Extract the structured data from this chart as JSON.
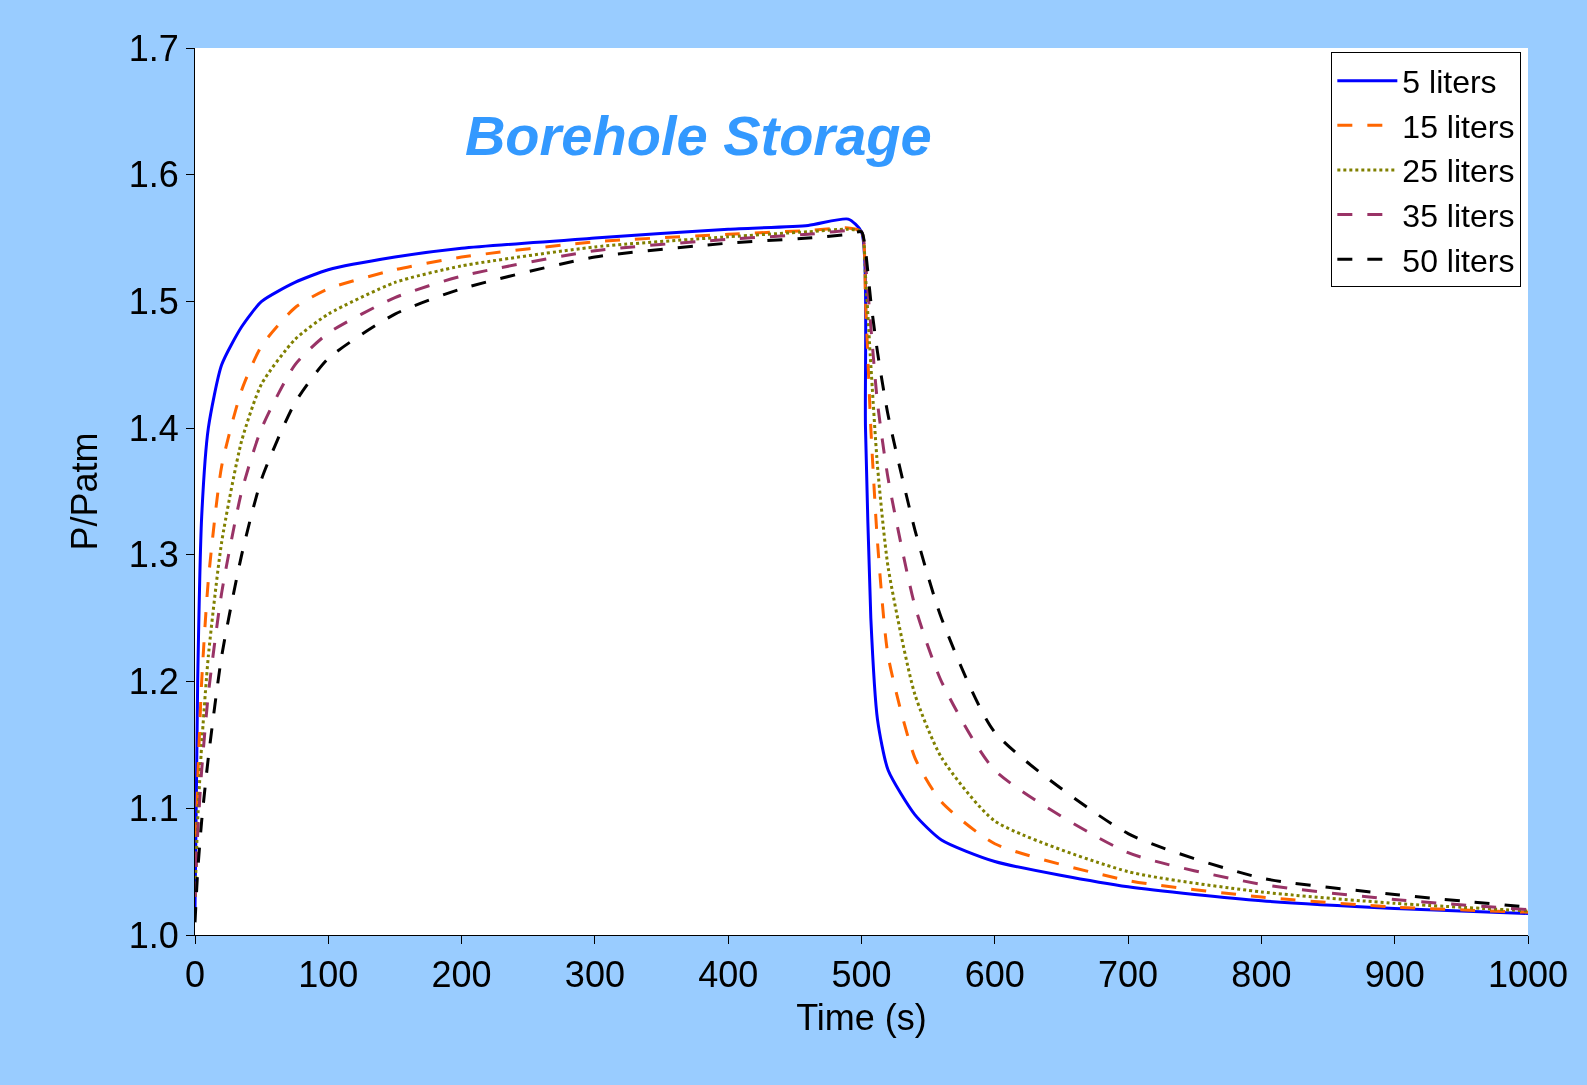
{
  "chart_data": {
    "type": "line",
    "title": "Borehole Storage",
    "xlabel": "Time (s)",
    "ylabel": "P/Patm",
    "xlim": [
      0,
      1000
    ],
    "xticks": [
      0,
      100,
      200,
      300,
      400,
      500,
      600,
      700,
      800,
      900,
      1000
    ],
    "ylim": [
      1,
      1.7
    ],
    "yticks": [
      {
        "value": 1,
        "label": "1.0"
      },
      1.1,
      1.2,
      1.3,
      1.4,
      1.5,
      1.6,
      1.7
    ],
    "grid": false,
    "legend": "top right",
    "marker": "none",
    "x": [
      0,
      2,
      5,
      10,
      20,
      35,
      50,
      75,
      100,
      150,
      200,
      300,
      400,
      460,
      490,
      500,
      503,
      507,
      512,
      520,
      540,
      560,
      600,
      700,
      800,
      900,
      1000
    ],
    "series": [
      {
        "name": "5 liters",
        "color": "#0000ff",
        "line_style": "solid",
        "values": [
          1.02,
          1.2,
          1.33,
          1.4,
          1.45,
          1.48,
          1.5,
          1.515,
          1.525,
          1.535,
          1.542,
          1.55,
          1.557,
          1.56,
          1.565,
          1.555,
          1.4,
          1.25,
          1.17,
          1.13,
          1.095,
          1.075,
          1.058,
          1.038,
          1.027,
          1.021,
          1.017
        ]
      },
      {
        "name": "15 liters",
        "color": "#ff6600",
        "line_style": "dashed",
        "values": [
          1.03,
          1.12,
          1.2,
          1.28,
          1.37,
          1.43,
          1.465,
          1.495,
          1.51,
          1.525,
          1.535,
          1.547,
          1.553,
          1.556,
          1.558,
          1.555,
          1.5,
          1.4,
          1.31,
          1.22,
          1.14,
          1.105,
          1.072,
          1.043,
          1.03,
          1.022,
          1.018
        ]
      },
      {
        "name": "25 liters",
        "color": "#808000",
        "line_style": "dotted",
        "values": [
          1.03,
          1.09,
          1.15,
          1.22,
          1.31,
          1.39,
          1.435,
          1.47,
          1.49,
          1.515,
          1.528,
          1.543,
          1.551,
          1.555,
          1.557,
          1.555,
          1.52,
          1.45,
          1.37,
          1.29,
          1.19,
          1.14,
          1.09,
          1.05,
          1.034,
          1.025,
          1.019
        ]
      },
      {
        "name": "35 liters",
        "color": "#993366",
        "line_style": "dashed",
        "values": [
          1.03,
          1.08,
          1.13,
          1.19,
          1.27,
          1.35,
          1.4,
          1.45,
          1.475,
          1.503,
          1.52,
          1.54,
          1.549,
          1.553,
          1.556,
          1.555,
          1.53,
          1.48,
          1.42,
          1.36,
          1.26,
          1.2,
          1.13,
          1.065,
          1.04,
          1.028,
          1.02
        ]
      },
      {
        "name": "50 liters",
        "color": "#000000",
        "line_style": "dashed",
        "values": [
          1.01,
          1.05,
          1.09,
          1.14,
          1.22,
          1.3,
          1.36,
          1.42,
          1.455,
          1.49,
          1.51,
          1.535,
          1.546,
          1.55,
          1.553,
          1.555,
          1.54,
          1.5,
          1.46,
          1.41,
          1.32,
          1.25,
          1.16,
          1.08,
          1.045,
          1.032,
          1.022
        ]
      }
    ]
  }
}
